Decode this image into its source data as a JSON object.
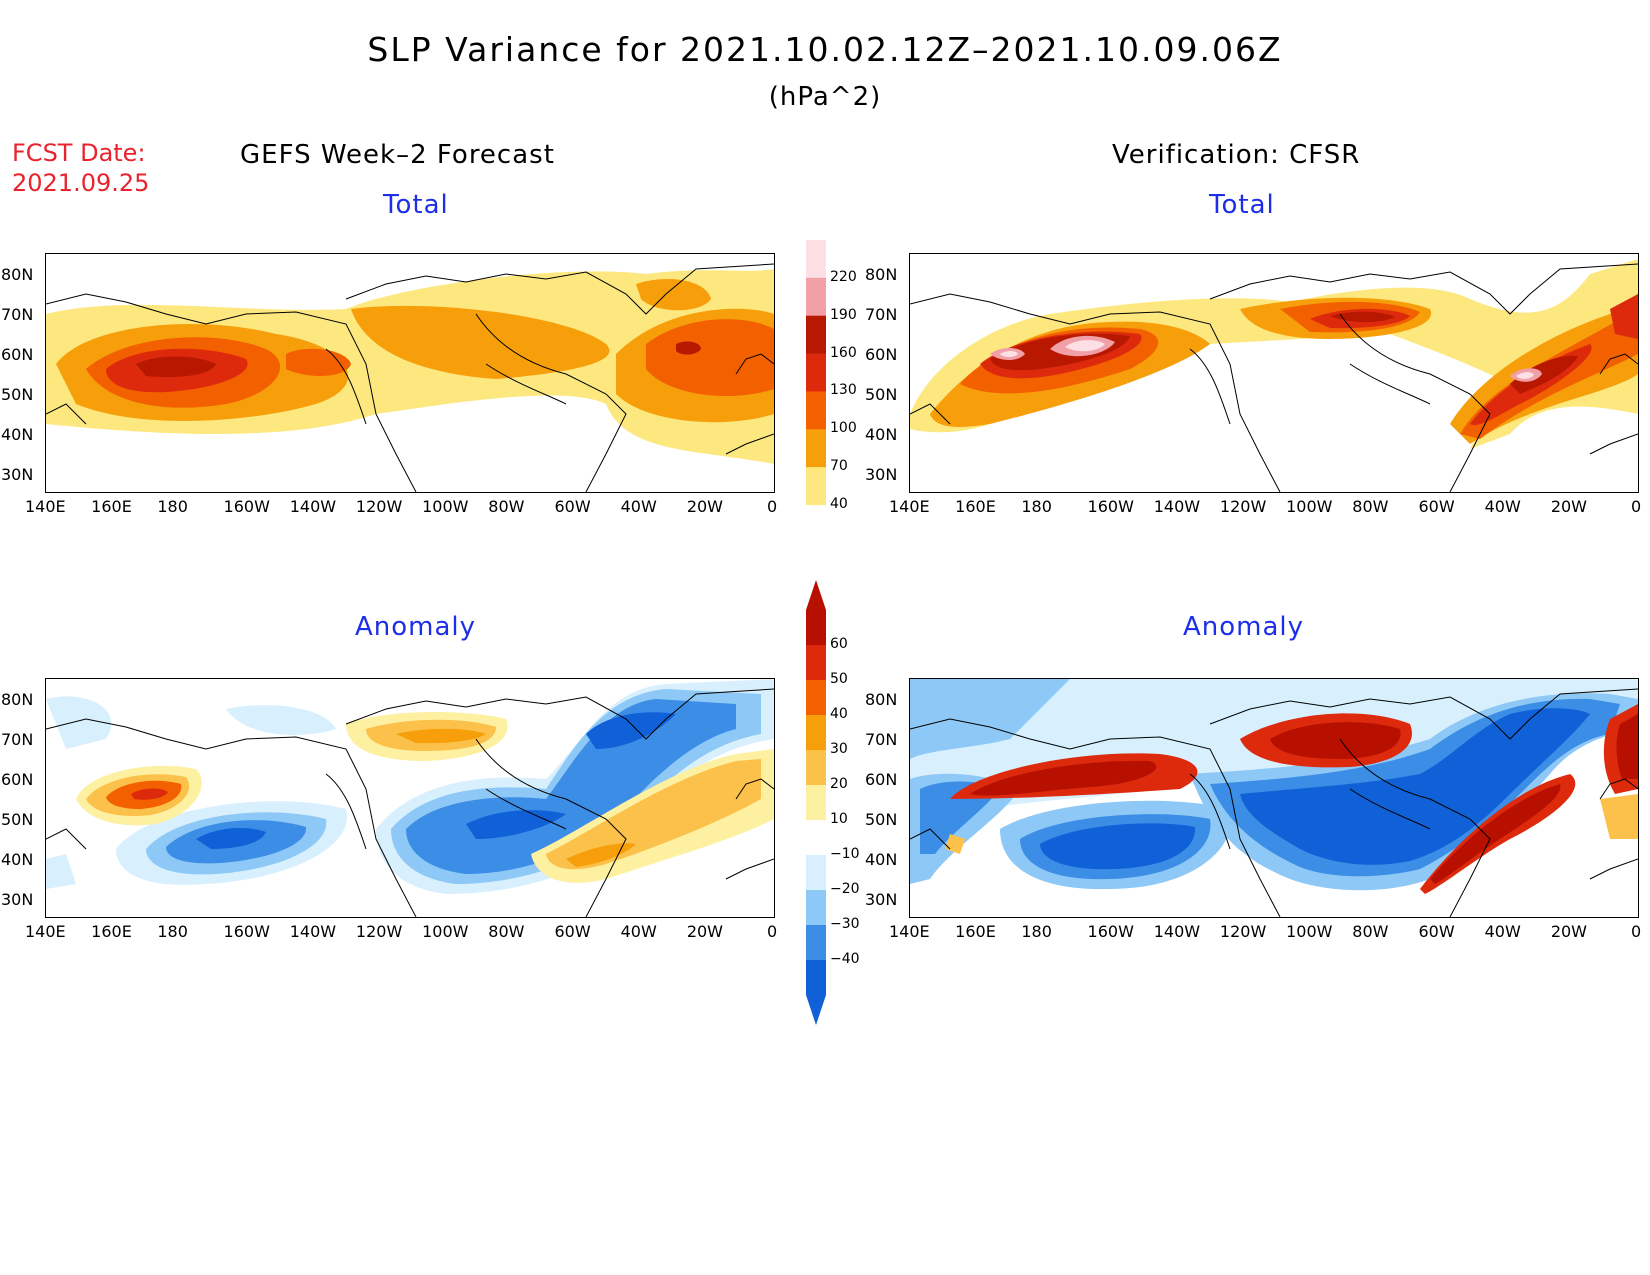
{
  "title": "SLP Variance for 2021.10.02.12Z–2021.10.09.06Z",
  "units": "(hPa^2)",
  "fcst_date_label": "FCST Date:",
  "fcst_date": "2021.09.25",
  "left_column_title": "GEFS Week–2 Forecast",
  "right_column_title": "Verification: CFSR",
  "panels": {
    "top_left_title": "Total",
    "top_right_title": "Total",
    "bottom_left_title": "Anomaly",
    "bottom_right_title": "Anomaly"
  },
  "lat_labels": [
    "80N",
    "70N",
    "60N",
    "50N",
    "40N",
    "30N"
  ],
  "lon_labels": [
    "140E",
    "160E",
    "180",
    "160W",
    "140W",
    "120W",
    "100W",
    "80W",
    "60W",
    "40W",
    "20W",
    "0"
  ],
  "total_colorbar": {
    "labels": [
      "220",
      "190",
      "160",
      "130",
      "100",
      "70",
      "40"
    ],
    "colors": [
      "#fde0e5",
      "#f2a0a8",
      "#b81800",
      "#dd2a0c",
      "#f26000",
      "#f79f0a",
      "#fde880"
    ]
  },
  "anomaly_colorbar": {
    "labels": [
      "60",
      "50",
      "40",
      "30",
      "20",
      "10",
      "−10",
      "−20",
      "−30",
      "−40"
    ],
    "colors": [
      "#b81000",
      "#dd2a0c",
      "#f26000",
      "#f79f0a",
      "#fbc14a",
      "#fdf0a0",
      "#ffffff",
      "#d8f0fd",
      "#8ec8f6",
      "#3b8de6",
      "#1060d8"
    ]
  }
}
